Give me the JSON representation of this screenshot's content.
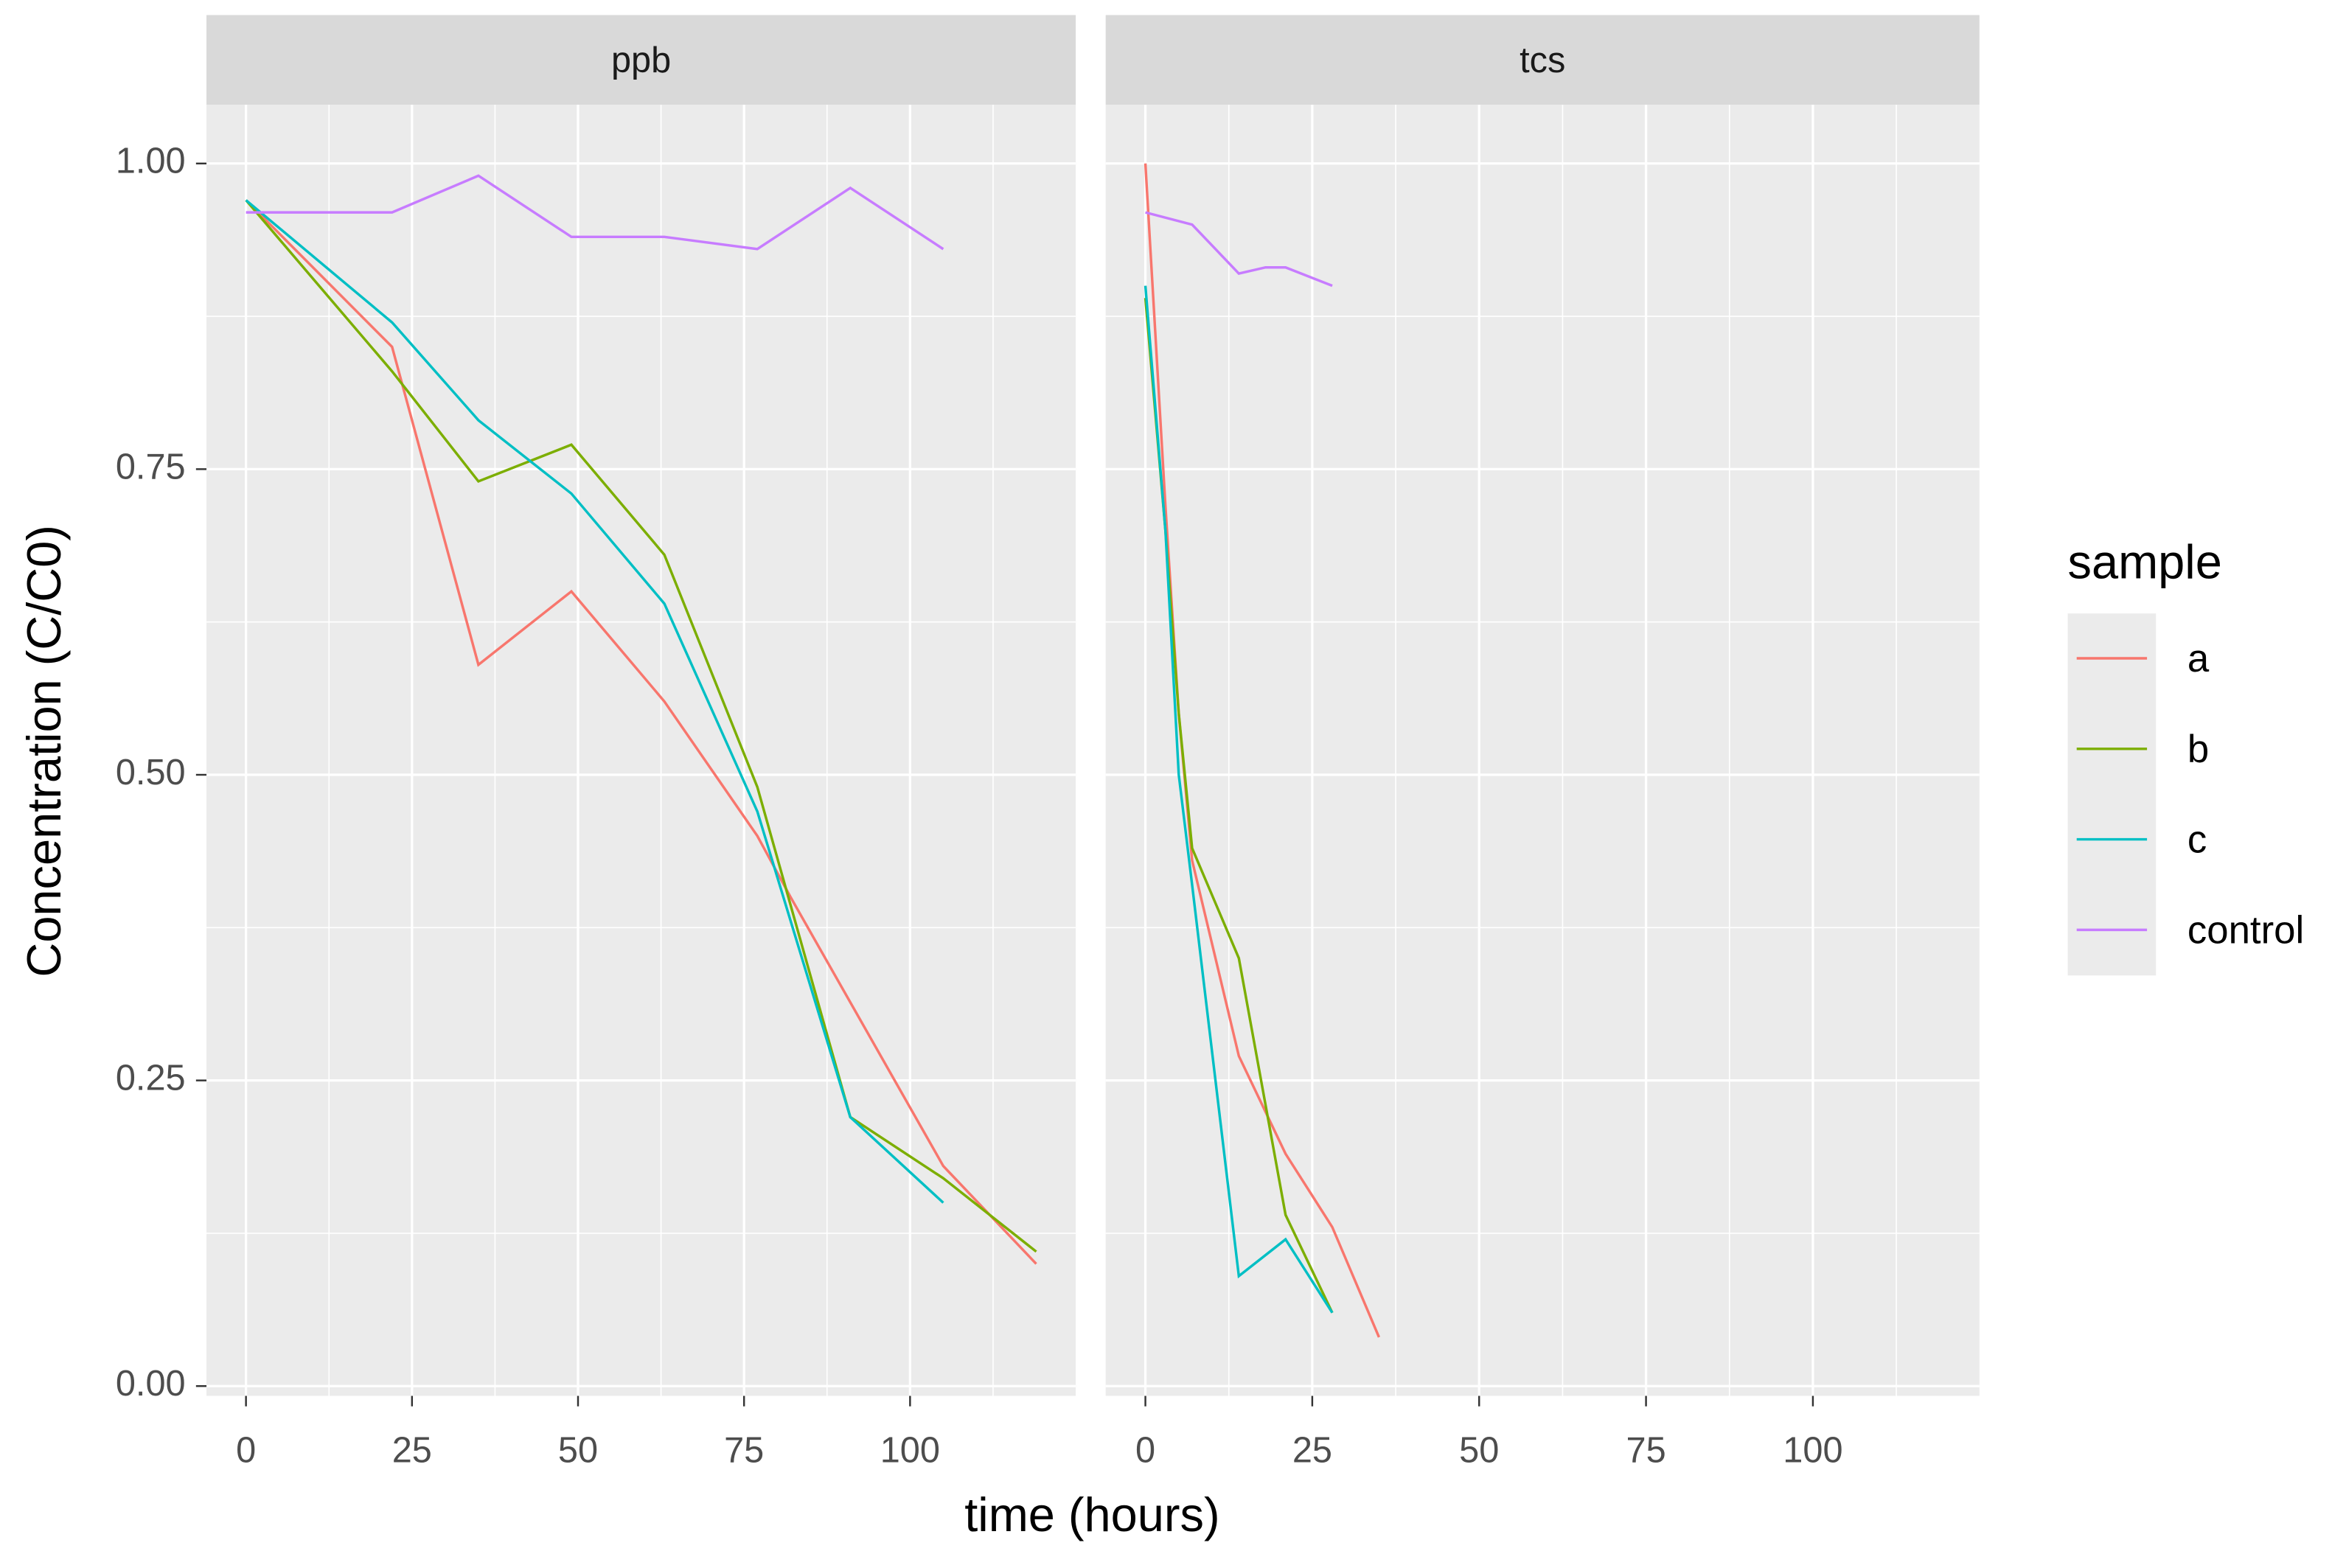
{
  "x_label": "time (hours)",
  "y_label": "Concentration (C/C0)",
  "legend_title": "sample",
  "chart_data": [
    {
      "type": "line",
      "title": "ppb",
      "xlim": [
        -5.95,
        124.95
      ],
      "ylim": [
        -0.008,
        1.048
      ],
      "xticks": [
        0,
        25,
        50,
        75,
        100
      ],
      "yticks": [
        {
          "value": 0,
          "label": "0.00"
        },
        {
          "value": 0.25,
          "label": "0.25"
        },
        {
          "value": 0.5,
          "label": "0.50"
        },
        0.75,
        {
          "value": 1,
          "label": "1.00"
        }
      ],
      "x_minor_grid": [
        12.5,
        37.5,
        62.5,
        87.5,
        112.5
      ],
      "y_minor_grid": [
        0.125,
        0.375,
        0.625,
        0.875
      ],
      "grid": true,
      "series": [
        {
          "name": "a",
          "color": "#F8766D",
          "x": [
            0,
            22,
            35,
            49,
            63,
            77,
            82,
            105,
            119
          ],
          "values": [
            0.97,
            0.85,
            0.59,
            0.65,
            0.56,
            0.45,
            0.4,
            0.18,
            0.1
          ]
        },
        {
          "name": "b",
          "color": "#7CAE00",
          "x": [
            0,
            22,
            35,
            49,
            63,
            77,
            91,
            105,
            119
          ],
          "values": [
            0.97,
            0.83,
            0.74,
            0.77,
            0.68,
            0.49,
            0.22,
            0.17,
            0.11
          ]
        },
        {
          "name": "c",
          "color": "#00BFC4",
          "x": [
            0,
            22,
            35,
            49,
            63,
            77,
            91,
            105
          ],
          "values": [
            0.97,
            0.87,
            0.79,
            0.73,
            0.64,
            0.47,
            0.22,
            0.15
          ]
        },
        {
          "name": "control",
          "color": "#C77CFF",
          "x": [
            0,
            22,
            35,
            49,
            63,
            77,
            91,
            105
          ],
          "values": [
            0.96,
            0.96,
            0.99,
            0.94,
            0.94,
            0.93,
            0.98,
            0.93
          ]
        }
      ]
    },
    {
      "type": "line",
      "title": "tcs",
      "xlim": [
        -5.95,
        124.95
      ],
      "ylim": [
        -0.008,
        1.048
      ],
      "xticks": [
        0,
        25,
        50,
        75,
        100
      ],
      "yticks": [
        0,
        0.25,
        0.5,
        0.75,
        1
      ],
      "x_minor_grid": [
        12.5,
        37.5,
        62.5,
        87.5,
        112.5
      ],
      "y_minor_grid": [
        0.125,
        0.375,
        0.625,
        0.875
      ],
      "grid": true,
      "series": [
        {
          "name": "a",
          "color": "#F8766D",
          "x": [
            0,
            3,
            5,
            7,
            14,
            21,
            28,
            35
          ],
          "values": [
            1.0,
            0.72,
            0.55,
            0.43,
            0.27,
            0.19,
            0.13,
            0.04
          ]
        },
        {
          "name": "b",
          "color": "#7CAE00",
          "x": [
            0,
            3,
            5,
            7,
            14,
            21,
            28
          ],
          "values": [
            0.89,
            0.7,
            0.55,
            0.44,
            0.35,
            0.14,
            0.06
          ]
        },
        {
          "name": "c",
          "color": "#00BFC4",
          "x": [
            0,
            3,
            5,
            7,
            14,
            21,
            28
          ],
          "values": [
            0.9,
            0.7,
            0.5,
            0.41,
            0.09,
            0.12,
            0.06
          ]
        },
        {
          "name": "control",
          "color": "#C77CFF",
          "x": [
            0,
            7,
            14,
            18,
            21,
            28
          ],
          "values": [
            0.96,
            0.95,
            0.91,
            0.915,
            0.915,
            0.9
          ]
        }
      ]
    }
  ]
}
